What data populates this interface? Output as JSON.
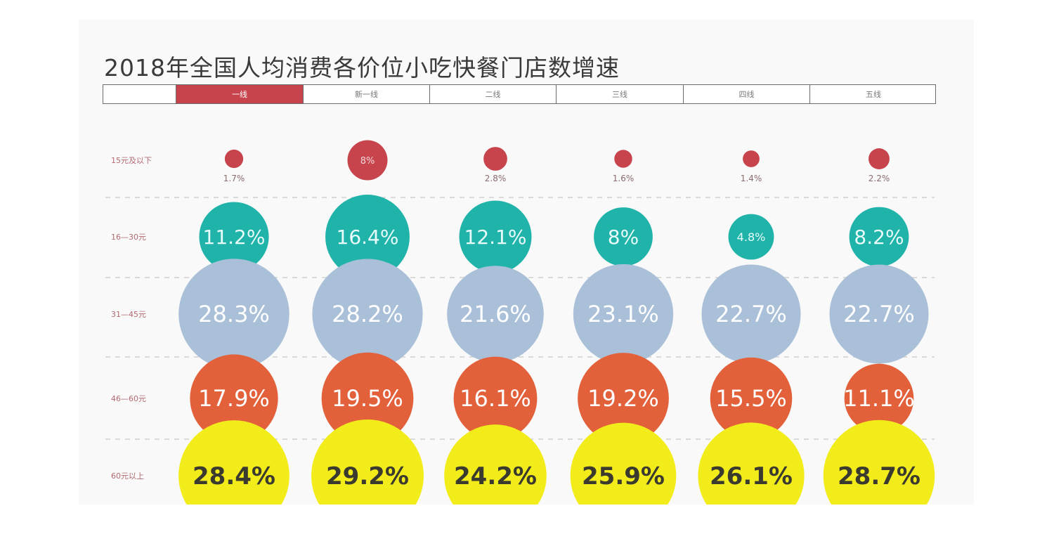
{
  "title": "2018年全国人均消费各价位小吃快餐门店数增速",
  "tabs": [
    {
      "label": "",
      "active": false
    },
    {
      "label": "一线",
      "active": true
    },
    {
      "label": "新一线",
      "active": false
    },
    {
      "label": "二线",
      "active": false
    },
    {
      "label": "三线",
      "active": false
    },
    {
      "label": "四线",
      "active": false
    },
    {
      "label": "五线",
      "active": false
    }
  ],
  "chart_data": {
    "type": "bubble-matrix",
    "title": "2018年全国人均消费各价位小吃快餐门店数增速",
    "columns": [
      "一线",
      "新一线",
      "二线",
      "三线",
      "四线",
      "五线"
    ],
    "rows": [
      {
        "label": "15元及以下",
        "color": "#c8444d",
        "values": [
          1.7,
          8,
          2.8,
          1.6,
          1.4,
          2.2
        ],
        "labels": [
          "1.7%",
          "8%",
          "2.8%",
          "1.6%",
          "1.4%",
          "2.2%"
        ]
      },
      {
        "label": "16—30元",
        "color": "#1fb3aa",
        "values": [
          11.2,
          16.4,
          12.1,
          8,
          4.8,
          8.2
        ],
        "labels": [
          "11.2%",
          "16.4%",
          "12.1%",
          "8%",
          "4.8%",
          "8.2%"
        ]
      },
      {
        "label": "31—45元",
        "color": "#a9c0d8",
        "values": [
          28.3,
          28.2,
          21.6,
          23.1,
          22.7,
          22.7
        ],
        "labels": [
          "28.3%",
          "28.2%",
          "21.6%",
          "23.1%",
          "22.7%",
          "22.7%"
        ]
      },
      {
        "label": "46—60元",
        "color": "#e2603a",
        "values": [
          17.9,
          19.5,
          16.1,
          19.2,
          15.5,
          11.1
        ],
        "labels": [
          "17.9%",
          "19.5%",
          "16.1%",
          "19.2%",
          "15.5%",
          "11.1%"
        ]
      },
      {
        "label": "60元以上",
        "color": "#f3ec1b",
        "values": [
          28.4,
          29.2,
          24.2,
          25.9,
          26.1,
          28.7
        ],
        "labels": [
          "28.4%",
          "29.2%",
          "24.2%",
          "25.9%",
          "26.1%",
          "28.7%"
        ]
      }
    ]
  }
}
